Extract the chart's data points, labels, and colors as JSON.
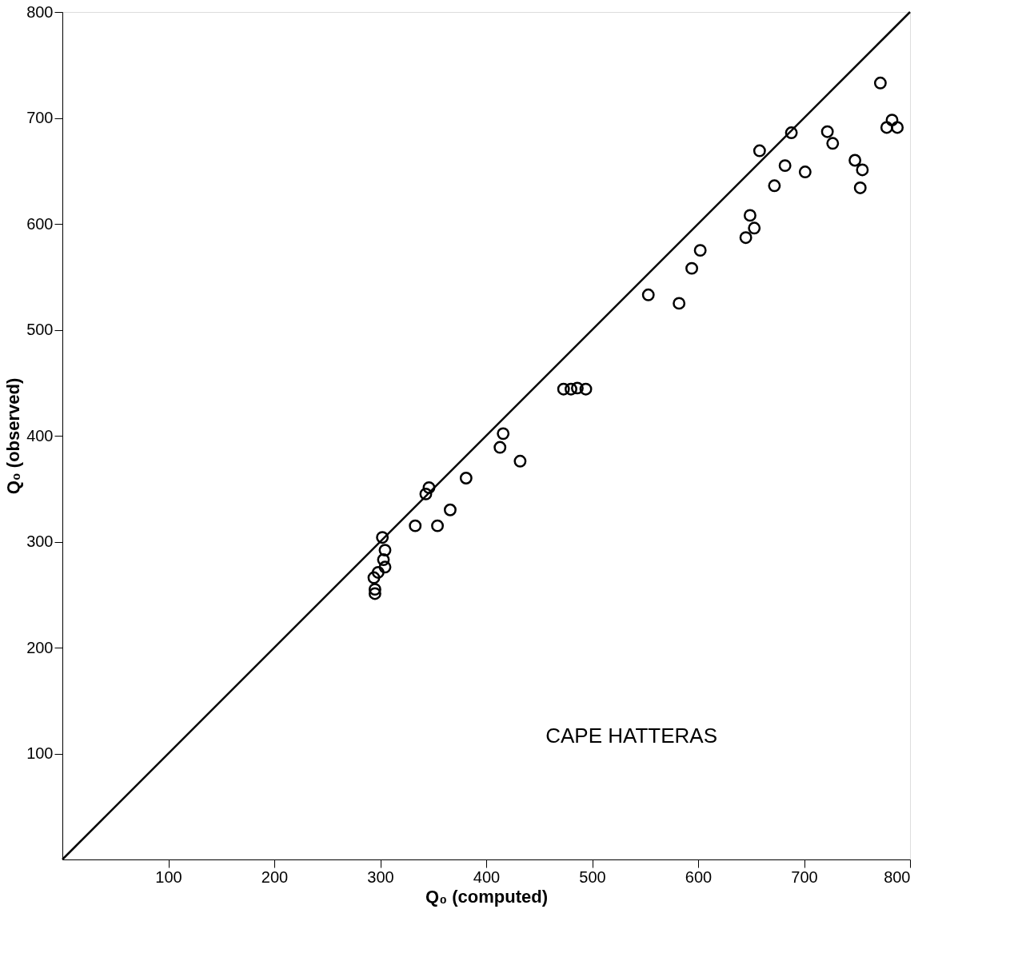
{
  "chart_data": {
    "type": "scatter",
    "xlabel": "Q₀ (computed)",
    "ylabel": "Q₀ (observed)",
    "annotations": [
      "CAPE HATTERAS"
    ],
    "xlim": [
      0,
      800
    ],
    "ylim": [
      0,
      800
    ],
    "xticks": [
      100,
      200,
      300,
      400,
      500,
      600,
      700,
      800
    ],
    "yticks": [
      100,
      200,
      300,
      400,
      500,
      600,
      700,
      800
    ],
    "grid": false,
    "legend": false,
    "series": [
      {
        "marker": "circle",
        "color": "#000000",
        "x": [
          302,
          304.5,
          303,
          304.5,
          298,
          294,
          295,
          295,
          333,
          354,
          366,
          343,
          346,
          381,
          413,
          432,
          416,
          473,
          480,
          486,
          494,
          553,
          582,
          594,
          602,
          649,
          653,
          645,
          658,
          688,
          682,
          672,
          701,
          722,
          727,
          748,
          755,
          753,
          778,
          783,
          788,
          772
        ],
        "values": [
          304,
          292,
          283,
          276,
          271,
          266,
          255,
          251,
          315,
          315,
          330,
          345,
          351,
          360,
          389,
          376,
          402,
          444,
          444,
          445,
          444,
          533,
          525,
          558,
          575,
          608,
          596,
          587,
          669,
          686,
          655,
          636,
          649,
          687,
          676,
          660,
          651,
          634,
          691,
          698,
          691,
          733
        ]
      },
      {
        "type": "line",
        "color": "#000000",
        "line_style": "solid",
        "marker": "none",
        "x": [
          0,
          800
        ],
        "values": [
          0,
          800
        ]
      }
    ]
  }
}
